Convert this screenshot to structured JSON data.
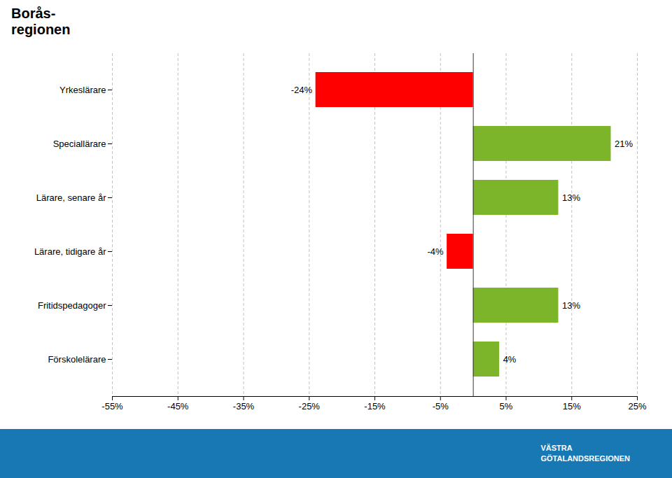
{
  "chart_data": {
    "type": "bar",
    "orientation": "horizontal",
    "title": "Borås-\nregionen",
    "categories": [
      "Yrkeslärare",
      "Speciallärare",
      "Lärare, senare år",
      "Lärare, tidigare år",
      "Fritidspedagoger",
      "Förskolelärare"
    ],
    "values": [
      -24,
      21,
      13,
      -4,
      13,
      4
    ],
    "value_labels": [
      "-24%",
      "21%",
      "13%",
      "-4%",
      "13%",
      "4%"
    ],
    "data_labels": true,
    "colors": [
      "#ff0000",
      "#7db52a",
      "#7db52a",
      "#ff0000",
      "#7db52a",
      "#7db52a"
    ],
    "xlim": [
      -55,
      25
    ],
    "xticks": [
      {
        "value": -55,
        "label": "-55%"
      },
      {
        "value": -45,
        "label": "-45%"
      },
      {
        "value": -35,
        "label": "-35%"
      },
      {
        "value": -25,
        "label": "-25%"
      },
      {
        "value": -15,
        "label": "-15%"
      },
      {
        "value": -5,
        "label": "-5%"
      },
      {
        "value": 5,
        "label": "5%"
      },
      {
        "value": 15,
        "label": "15%"
      },
      {
        "value": 25,
        "label": "25%"
      }
    ],
    "grid": true,
    "annotations": [
      "VÄSTRA\nGÖTALANDSREGIONEN"
    ]
  }
}
